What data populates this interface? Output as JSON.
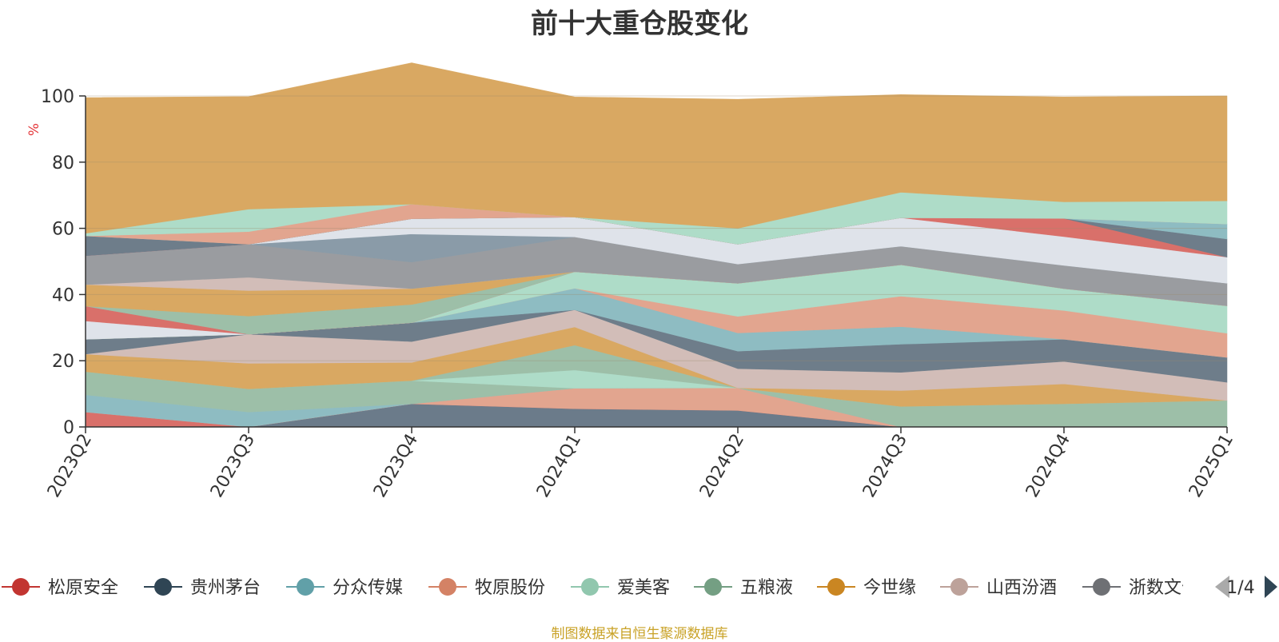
{
  "chart_data": {
    "type": "area",
    "stacked": true,
    "title": "前十大重仓股变化",
    "ylabel": "%",
    "xlabel": "",
    "ylim": [
      0,
      100
    ],
    "yticks": [
      0,
      20,
      40,
      60,
      80,
      100
    ],
    "grid": true,
    "legend_position": "bottom",
    "categories": [
      "2023Q2",
      "2023Q3",
      "2023Q4",
      "2024Q1",
      "2024Q2",
      "2024Q3",
      "2024Q4",
      "2025Q1"
    ],
    "series": [
      {
        "name": "",
        "color": "#6b7b8a",
        "values": [
          0,
          0,
          7,
          5.5,
          5,
          0,
          0,
          0
        ]
      },
      {
        "name": "松原安全",
        "color": "#d9706a",
        "values": [
          4.5,
          0,
          0,
          0,
          0,
          0,
          0,
          0
        ]
      },
      {
        "name": "",
        "color": "#e2a58f",
        "values": [
          0,
          0,
          0,
          6.2,
          6.8,
          0,
          0,
          0
        ]
      },
      {
        "name": "",
        "color": "#8ebcc2",
        "values": [
          5.2,
          4.5,
          0,
          0,
          0,
          0,
          0,
          0
        ]
      },
      {
        "name": "",
        "color": "#9dbfa8",
        "values": [
          7,
          7,
          7,
          0,
          0,
          6.2,
          7,
          8
        ]
      },
      {
        "name": "",
        "color": "#aedcc8",
        "values": [
          0,
          0,
          0,
          5.5,
          0,
          0,
          0,
          0
        ]
      },
      {
        "name": "",
        "color": "#9dbfa8",
        "values": [
          0,
          0,
          0,
          7.5,
          0,
          0,
          0,
          0
        ]
      },
      {
        "name": "",
        "color": "#d9a862",
        "values": [
          5.3,
          7.7,
          5.5,
          5.5,
          0,
          4.8,
          6,
          0
        ]
      },
      {
        "name": "",
        "color": "#d2bdb8",
        "values": [
          0,
          8.8,
          6.3,
          5.2,
          5.8,
          5.5,
          6.8,
          5.5
        ]
      },
      {
        "name": "",
        "color": "#6e7d8a",
        "values": [
          4.5,
          0,
          5.7,
          0,
          5.3,
          8.5,
          6.7,
          7.5
        ]
      },
      {
        "name": "",
        "color": "#8ebcc2",
        "values": [
          0,
          0,
          0,
          6.5,
          5.5,
          5.3,
          0,
          0
        ]
      },
      {
        "name": "",
        "color": "#e2a58f",
        "values": [
          0,
          0,
          0,
          0,
          5,
          9.2,
          8.7,
          7.3
        ]
      },
      {
        "name": "",
        "color": "#aedcc8",
        "values": [
          0,
          0,
          0,
          5,
          10,
          9.5,
          6.6,
          8.3
        ]
      },
      {
        "name": "",
        "color": "#dfe3ea",
        "values": [
          5.5,
          0,
          0,
          0,
          0,
          0,
          0,
          0
        ]
      },
      {
        "name": "",
        "color": "#d9706a",
        "values": [
          4.5,
          0,
          0,
          0,
          0,
          0,
          0,
          0
        ]
      },
      {
        "name": "",
        "color": "#9dbfa8",
        "values": [
          0,
          5.5,
          5.5,
          0,
          0,
          0,
          0,
          0
        ]
      },
      {
        "name": "",
        "color": "#d9a862",
        "values": [
          6.5,
          7.7,
          4.8,
          0,
          0,
          0,
          0,
          0
        ]
      },
      {
        "name": "",
        "color": "#d2bdb8",
        "values": [
          0,
          4,
          0,
          0,
          0,
          0,
          0,
          0
        ]
      },
      {
        "name": "",
        "color": "#9a9ca0",
        "values": [
          8.7,
          10,
          8,
          10.5,
          5.8,
          5.6,
          7,
          6.8
        ]
      },
      {
        "name": "",
        "color": "#8a9ba8",
        "values": [
          0,
          0,
          8.5,
          0,
          0,
          0,
          0,
          0
        ]
      },
      {
        "name": "",
        "color": "#dfe3ea",
        "values": [
          0,
          0,
          4.6,
          6,
          6,
          8.6,
          8.7,
          7.9
        ]
      },
      {
        "name": "",
        "color": "#d9706a",
        "values": [
          0,
          0,
          0,
          0,
          0,
          0,
          5.5,
          0
        ]
      },
      {
        "name": "",
        "color": "#6e7d8a",
        "values": [
          6,
          0,
          0,
          0,
          0,
          0,
          0,
          5.5
        ]
      },
      {
        "name": "",
        "color": "#8ebcc2",
        "values": [
          0,
          0,
          0,
          0,
          0,
          0,
          0,
          4.5
        ]
      },
      {
        "name": "",
        "color": "#e2a58f",
        "values": [
          0,
          3.8,
          4.4,
          0,
          0,
          0,
          0,
          0
        ]
      },
      {
        "name": "",
        "color": "#aedcc8",
        "values": [
          0.8,
          6.8,
          0,
          0,
          4.8,
          7.7,
          5,
          7
        ]
      },
      {
        "name": "",
        "color": "#d9a862",
        "values": [
          41,
          34,
          42.7,
          36.3,
          39,
          29.5,
          31.7,
          31.7
        ]
      }
    ],
    "legend": {
      "items": [
        {
          "name": "松原安全",
          "color": "#c23531"
        },
        {
          "name": "贵州茅台",
          "color": "#2f4554"
        },
        {
          "name": "分众传媒",
          "color": "#61a0a8"
        },
        {
          "name": "牧原股份",
          "color": "#d48265"
        },
        {
          "name": "爱美客",
          "color": "#91c7ae"
        },
        {
          "name": "五粮液",
          "color": "#749f83"
        },
        {
          "name": "今世缘",
          "color": "#ca8622"
        },
        {
          "name": "山西汾酒",
          "color": "#bda29a"
        },
        {
          "name": "浙数文化",
          "color": "#6e7074"
        }
      ],
      "page": "1/4"
    }
  },
  "footer": {
    "note": "制图数据来自恒生聚源数据库"
  }
}
